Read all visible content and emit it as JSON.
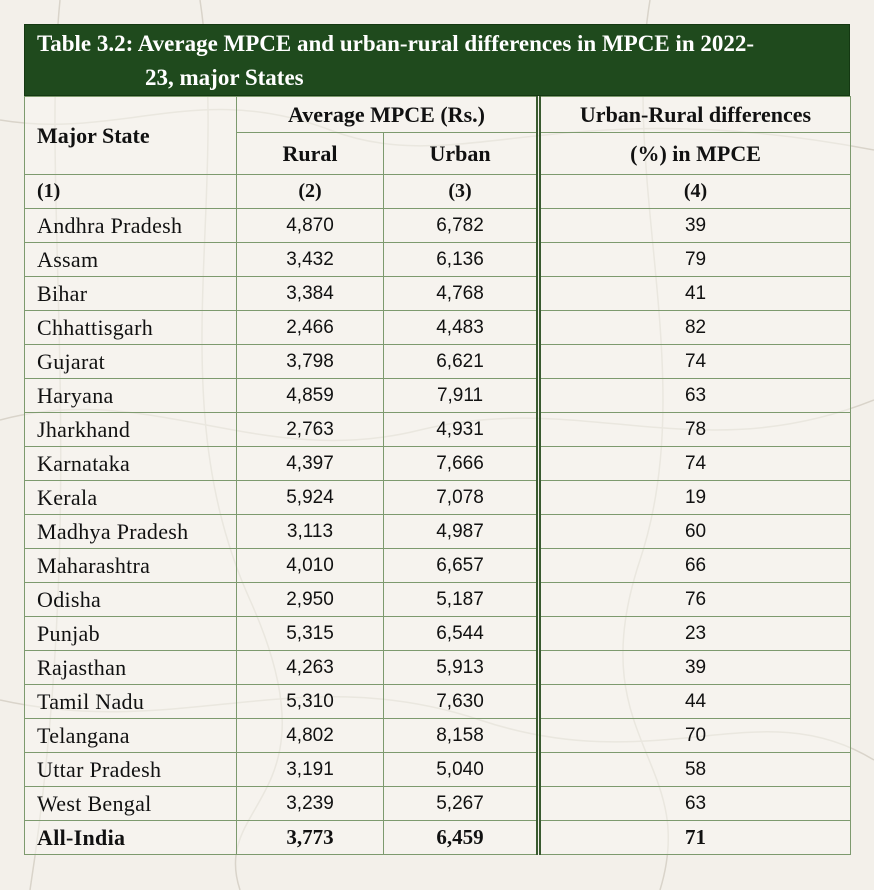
{
  "title": {
    "line1": "Table 3.2: Average MPCE and urban-rural differences in MPCE in 2022-",
    "line2": "23, major States"
  },
  "headers": {
    "state": "Major State",
    "avg_mpce": "Average MPCE (Rs.)",
    "rural": "Rural",
    "urban": "Urban",
    "diff_line1": "Urban-Rural differences",
    "diff_line2": "(%) in MPCE",
    "ref1": "(1)",
    "ref2": "(2)",
    "ref3": "(3)",
    "ref4": "(4)"
  },
  "rows": [
    {
      "state": "Andhra Pradesh",
      "rural": "4,870",
      "urban": "6,782",
      "diff": "39"
    },
    {
      "state": "Assam",
      "rural": "3,432",
      "urban": "6,136",
      "diff": "79"
    },
    {
      "state": "Bihar",
      "rural": "3,384",
      "urban": "4,768",
      "diff": "41"
    },
    {
      "state": "Chhattisgarh",
      "rural": "2,466",
      "urban": "4,483",
      "diff": "82"
    },
    {
      "state": "Gujarat",
      "rural": "3,798",
      "urban": "6,621",
      "diff": "74"
    },
    {
      "state": "Haryana",
      "rural": "4,859",
      "urban": "7,911",
      "diff": "63"
    },
    {
      "state": "Jharkhand",
      "rural": "2,763",
      "urban": "4,931",
      "diff": "78"
    },
    {
      "state": "Karnataka",
      "rural": "4,397",
      "urban": "7,666",
      "diff": "74"
    },
    {
      "state": "Kerala",
      "rural": "5,924",
      "urban": "7,078",
      "diff": "19"
    },
    {
      "state": "Madhya Pradesh",
      "rural": "3,113",
      "urban": "4,987",
      "diff": "60"
    },
    {
      "state": "Maharashtra",
      "rural": "4,010",
      "urban": "6,657",
      "diff": "66"
    },
    {
      "state": "Odisha",
      "rural": "2,950",
      "urban": "5,187",
      "diff": "76"
    },
    {
      "state": "Punjab",
      "rural": "5,315",
      "urban": "6,544",
      "diff": "23"
    },
    {
      "state": "Rajasthan",
      "rural": "4,263",
      "urban": "5,913",
      "diff": "39"
    },
    {
      "state": "Tamil Nadu",
      "rural": "5,310",
      "urban": "7,630",
      "diff": "44"
    },
    {
      "state": "Telangana",
      "rural": "4,802",
      "urban": "8,158",
      "diff": "70"
    },
    {
      "state": "Uttar Pradesh",
      "rural": "3,191",
      "urban": "5,040",
      "diff": "58"
    },
    {
      "state": "West Bengal",
      "rural": "3,239",
      "urban": "5,267",
      "diff": "63"
    }
  ],
  "total": {
    "state": "All-India",
    "rural": "3,773",
    "urban": "6,459",
    "diff": "71"
  },
  "colors": {
    "title_bg": "#1f4a1d",
    "grid": "#7d9a6e",
    "page_bg": "#f3f0ea"
  }
}
